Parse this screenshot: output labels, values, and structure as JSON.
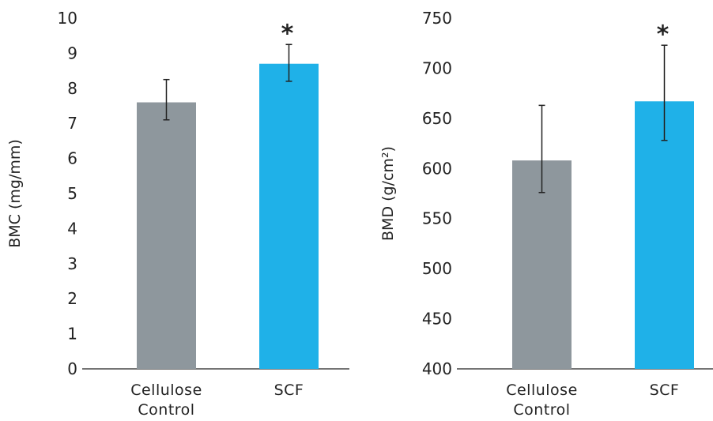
{
  "colors": {
    "control": "#8e979d",
    "scf": "#1fb1e8",
    "axis": "#222222"
  },
  "chart_data": [
    {
      "type": "bar",
      "categories": [
        [
          "Cellulose",
          "Control"
        ],
        [
          "SCF"
        ]
      ],
      "values": [
        7.6,
        8.7
      ],
      "error_low": [
        7.1,
        8.2
      ],
      "error_high": [
        8.25,
        9.25
      ],
      "significance": [
        "",
        "*"
      ],
      "ylabel": "BMC (mg/mm)",
      "ylim": [
        0,
        10
      ],
      "yticks": [
        0,
        1,
        2,
        3,
        4,
        5,
        6,
        7,
        8,
        9,
        10
      ],
      "grid": false
    },
    {
      "type": "bar",
      "categories": [
        [
          "Cellulose",
          "Control"
        ],
        [
          "SCF"
        ]
      ],
      "values": [
        608,
        667
      ],
      "error_low": [
        576,
        628
      ],
      "error_high": [
        663,
        723
      ],
      "significance": [
        "",
        "*"
      ],
      "ylabel": "BMD (g/cm²)",
      "ylim": [
        400,
        750
      ],
      "yticks": [
        400,
        450,
        500,
        550,
        600,
        650,
        700,
        750
      ],
      "grid": false
    }
  ]
}
